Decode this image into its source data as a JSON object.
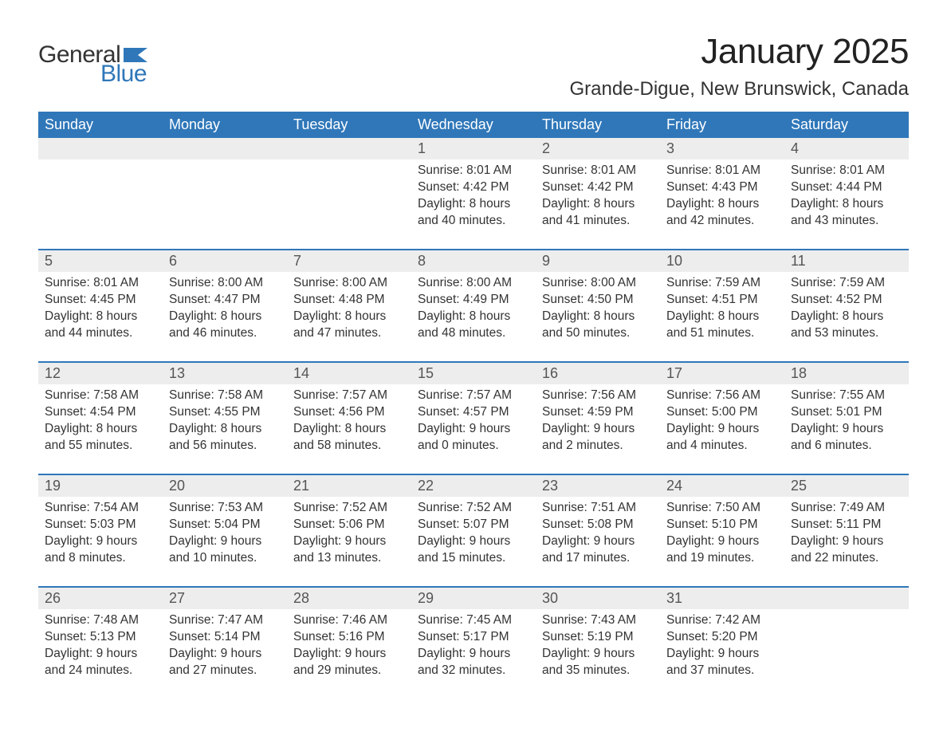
{
  "logo": {
    "text_general": "General",
    "text_blue": "Blue",
    "flag_color": "#2f77b9"
  },
  "title": "January 2025",
  "location": "Grande-Digue, New Brunswick, Canada",
  "colors": {
    "header_bg": "#2f77b9",
    "header_text": "#ffffff",
    "band_bg": "#ededed",
    "body_text": "#333333",
    "rule": "#2f77b9"
  },
  "fonts": {
    "title_pt": 44,
    "location_pt": 24,
    "weekday_pt": 18,
    "daynum_pt": 18,
    "body_pt": 15.5
  },
  "weekdays": [
    "Sunday",
    "Monday",
    "Tuesday",
    "Wednesday",
    "Thursday",
    "Friday",
    "Saturday"
  ],
  "weeks": [
    [
      null,
      null,
      null,
      {
        "n": "1",
        "sunrise": "8:01 AM",
        "sunset": "4:42 PM",
        "dl_h": "8",
        "dl_m": "40"
      },
      {
        "n": "2",
        "sunrise": "8:01 AM",
        "sunset": "4:42 PM",
        "dl_h": "8",
        "dl_m": "41"
      },
      {
        "n": "3",
        "sunrise": "8:01 AM",
        "sunset": "4:43 PM",
        "dl_h": "8",
        "dl_m": "42"
      },
      {
        "n": "4",
        "sunrise": "8:01 AM",
        "sunset": "4:44 PM",
        "dl_h": "8",
        "dl_m": "43"
      }
    ],
    [
      {
        "n": "5",
        "sunrise": "8:01 AM",
        "sunset": "4:45 PM",
        "dl_h": "8",
        "dl_m": "44"
      },
      {
        "n": "6",
        "sunrise": "8:00 AM",
        "sunset": "4:47 PM",
        "dl_h": "8",
        "dl_m": "46"
      },
      {
        "n": "7",
        "sunrise": "8:00 AM",
        "sunset": "4:48 PM",
        "dl_h": "8",
        "dl_m": "47"
      },
      {
        "n": "8",
        "sunrise": "8:00 AM",
        "sunset": "4:49 PM",
        "dl_h": "8",
        "dl_m": "48"
      },
      {
        "n": "9",
        "sunrise": "8:00 AM",
        "sunset": "4:50 PM",
        "dl_h": "8",
        "dl_m": "50"
      },
      {
        "n": "10",
        "sunrise": "7:59 AM",
        "sunset": "4:51 PM",
        "dl_h": "8",
        "dl_m": "51"
      },
      {
        "n": "11",
        "sunrise": "7:59 AM",
        "sunset": "4:52 PM",
        "dl_h": "8",
        "dl_m": "53"
      }
    ],
    [
      {
        "n": "12",
        "sunrise": "7:58 AM",
        "sunset": "4:54 PM",
        "dl_h": "8",
        "dl_m": "55"
      },
      {
        "n": "13",
        "sunrise": "7:58 AM",
        "sunset": "4:55 PM",
        "dl_h": "8",
        "dl_m": "56"
      },
      {
        "n": "14",
        "sunrise": "7:57 AM",
        "sunset": "4:56 PM",
        "dl_h": "8",
        "dl_m": "58"
      },
      {
        "n": "15",
        "sunrise": "7:57 AM",
        "sunset": "4:57 PM",
        "dl_h": "9",
        "dl_m": "0"
      },
      {
        "n": "16",
        "sunrise": "7:56 AM",
        "sunset": "4:59 PM",
        "dl_h": "9",
        "dl_m": "2"
      },
      {
        "n": "17",
        "sunrise": "7:56 AM",
        "sunset": "5:00 PM",
        "dl_h": "9",
        "dl_m": "4"
      },
      {
        "n": "18",
        "sunrise": "7:55 AM",
        "sunset": "5:01 PM",
        "dl_h": "9",
        "dl_m": "6"
      }
    ],
    [
      {
        "n": "19",
        "sunrise": "7:54 AM",
        "sunset": "5:03 PM",
        "dl_h": "9",
        "dl_m": "8"
      },
      {
        "n": "20",
        "sunrise": "7:53 AM",
        "sunset": "5:04 PM",
        "dl_h": "9",
        "dl_m": "10"
      },
      {
        "n": "21",
        "sunrise": "7:52 AM",
        "sunset": "5:06 PM",
        "dl_h": "9",
        "dl_m": "13"
      },
      {
        "n": "22",
        "sunrise": "7:52 AM",
        "sunset": "5:07 PM",
        "dl_h": "9",
        "dl_m": "15"
      },
      {
        "n": "23",
        "sunrise": "7:51 AM",
        "sunset": "5:08 PM",
        "dl_h": "9",
        "dl_m": "17"
      },
      {
        "n": "24",
        "sunrise": "7:50 AM",
        "sunset": "5:10 PM",
        "dl_h": "9",
        "dl_m": "19"
      },
      {
        "n": "25",
        "sunrise": "7:49 AM",
        "sunset": "5:11 PM",
        "dl_h": "9",
        "dl_m": "22"
      }
    ],
    [
      {
        "n": "26",
        "sunrise": "7:48 AM",
        "sunset": "5:13 PM",
        "dl_h": "9",
        "dl_m": "24"
      },
      {
        "n": "27",
        "sunrise": "7:47 AM",
        "sunset": "5:14 PM",
        "dl_h": "9",
        "dl_m": "27"
      },
      {
        "n": "28",
        "sunrise": "7:46 AM",
        "sunset": "5:16 PM",
        "dl_h": "9",
        "dl_m": "29"
      },
      {
        "n": "29",
        "sunrise": "7:45 AM",
        "sunset": "5:17 PM",
        "dl_h": "9",
        "dl_m": "32"
      },
      {
        "n": "30",
        "sunrise": "7:43 AM",
        "sunset": "5:19 PM",
        "dl_h": "9",
        "dl_m": "35"
      },
      {
        "n": "31",
        "sunrise": "7:42 AM",
        "sunset": "5:20 PM",
        "dl_h": "9",
        "dl_m": "37"
      },
      null
    ]
  ],
  "labels": {
    "sunrise": "Sunrise: ",
    "sunset": "Sunset: ",
    "daylight_a": "Daylight: ",
    "hours": " hours",
    "and": "and ",
    "minutes": " minutes."
  }
}
